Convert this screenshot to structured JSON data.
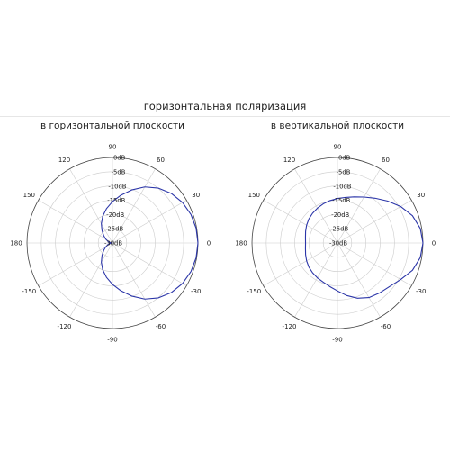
{
  "title": "горизонтальная поляризация",
  "colors": {
    "curve": "#2b35a8",
    "grid": "#cccccc",
    "frame": "#444444"
  },
  "chart_data": [
    {
      "type": "polar-line",
      "title": "в горизонтальной плоскости",
      "angle_ticks": [
        {
          "angle": 0,
          "label": "0"
        },
        {
          "angle": 30,
          "label": "30"
        },
        {
          "angle": 60,
          "label": "60"
        },
        {
          "angle": 90,
          "label": "90"
        },
        {
          "angle": 120,
          "label": "120"
        },
        {
          "angle": 150,
          "label": "150"
        },
        {
          "angle": 180,
          "label": "180"
        },
        {
          "angle": 210,
          "label": "-150"
        },
        {
          "angle": 240,
          "label": "-120"
        },
        {
          "angle": 270,
          "label": "-90"
        },
        {
          "angle": 300,
          "label": "-60"
        },
        {
          "angle": 330,
          "label": "-30"
        }
      ],
      "radial_ticks": [
        {
          "value": -30,
          "label": "-30dB"
        },
        {
          "value": -25,
          "label": "-25dB"
        },
        {
          "value": -20,
          "label": "-20dB"
        },
        {
          "value": -15,
          "label": "-15dB"
        },
        {
          "value": -10,
          "label": "-10dB"
        },
        {
          "value": -5,
          "label": "-5dB"
        },
        {
          "value": 0,
          "label": "0dB"
        }
      ],
      "rlim": [
        -30,
        0
      ],
      "series": [
        {
          "angle_deg": [
            0,
            10,
            20,
            30,
            40,
            50,
            60,
            70,
            80,
            90,
            100,
            110,
            120,
            130,
            140,
            150,
            160,
            170,
            175,
            180,
            185,
            190,
            200,
            210,
            220,
            230,
            240,
            250,
            260,
            270,
            280,
            290,
            300,
            310,
            320,
            330,
            340,
            350,
            360
          ],
          "gain_db": [
            0,
            -0.2,
            -0.7,
            -1.6,
            -3.0,
            -4.9,
            -7.3,
            -10.2,
            -13.0,
            -15.5,
            -17.8,
            -20.0,
            -22.2,
            -24.3,
            -26.0,
            -27.3,
            -28.3,
            -29.0,
            -29.6,
            -30,
            -29.6,
            -29.0,
            -28.3,
            -27.3,
            -26.0,
            -24.3,
            -22.2,
            -20.0,
            -17.8,
            -15.5,
            -13.0,
            -10.2,
            -7.3,
            -4.9,
            -3.0,
            -1.6,
            -0.7,
            -0.2,
            0
          ]
        }
      ]
    },
    {
      "type": "polar-line",
      "title": "в вертикальной плоскости",
      "angle_ticks": [
        {
          "angle": 0,
          "label": "0"
        },
        {
          "angle": 30,
          "label": "30"
        },
        {
          "angle": 60,
          "label": "60"
        },
        {
          "angle": 90,
          "label": "90"
        },
        {
          "angle": 120,
          "label": "120"
        },
        {
          "angle": 150,
          "label": "150"
        },
        {
          "angle": 180,
          "label": "180"
        },
        {
          "angle": 210,
          "label": "-150"
        },
        {
          "angle": 240,
          "label": "-120"
        },
        {
          "angle": 270,
          "label": "-90"
        },
        {
          "angle": 300,
          "label": "-60"
        },
        {
          "angle": 330,
          "label": "-30"
        }
      ],
      "radial_ticks": [
        {
          "value": -30,
          "label": "-30dB"
        },
        {
          "value": -25,
          "label": "-25dB"
        },
        {
          "value": -20,
          "label": "-20dB"
        },
        {
          "value": -15,
          "label": "-15dB"
        },
        {
          "value": -10,
          "label": "-10dB"
        },
        {
          "value": -5,
          "label": "-5dB"
        },
        {
          "value": 0,
          "label": "0dB"
        }
      ],
      "rlim": [
        -30,
        0
      ],
      "series": [
        {
          "angle_deg": [
            0,
            10,
            20,
            30,
            40,
            50,
            60,
            70,
            80,
            90,
            100,
            110,
            120,
            130,
            140,
            150,
            160,
            170,
            180,
            190,
            200,
            210,
            220,
            230,
            240,
            250,
            260,
            270,
            280,
            290,
            300,
            310,
            320,
            330,
            340,
            350,
            360
          ],
          "gain_db": [
            0,
            -0.5,
            -2.0,
            -4.4,
            -7.1,
            -9.5,
            -11.4,
            -12.8,
            -13.8,
            -14.4,
            -14.9,
            -15.4,
            -15.9,
            -16.4,
            -16.9,
            -17.5,
            -18.1,
            -18.6,
            -18.8,
            -18.6,
            -18.1,
            -17.5,
            -16.9,
            -16.4,
            -15.9,
            -15.4,
            -14.5,
            -13.2,
            -11.3,
            -9.4,
            -7.9,
            -7.1,
            -6.2,
            -4.4,
            -2.0,
            -0.5,
            0
          ]
        }
      ]
    }
  ]
}
